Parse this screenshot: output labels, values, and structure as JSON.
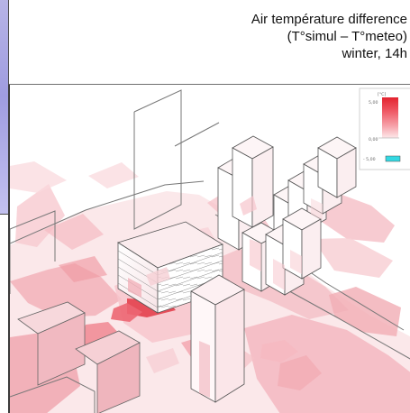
{
  "title": {
    "line1": "Air température difference",
    "line2": "(T°simul – T°meteo)",
    "line3": "winter, 14h"
  },
  "legend": {
    "unit": "[°C]",
    "high": "5,00",
    "mid": "0,00",
    "low": "- 5,00"
  },
  "colors": {
    "background": "#ffffff",
    "heat_red": "#e6333f",
    "low_cyan": "#34d8e2",
    "strip_blue": "#aaa7e3"
  }
}
